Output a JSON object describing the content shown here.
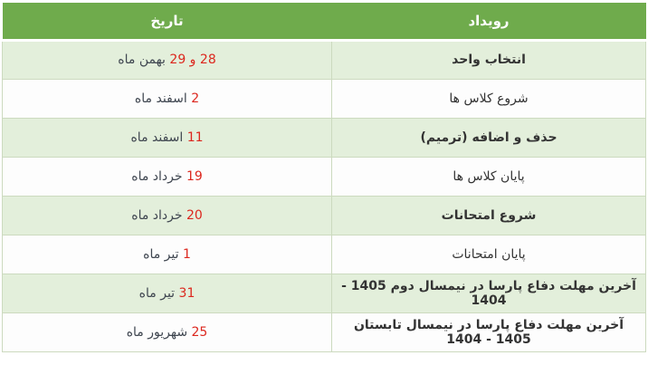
{
  "table": {
    "header": {
      "event": "رویداد",
      "date": "تاریخ"
    },
    "rows": [
      {
        "event": "انتخاب واحد",
        "date_num": "28 و 29",
        "date_month": "بهمن ماه"
      },
      {
        "event": "شروع کلاس ها",
        "date_num": "2",
        "date_month": "اسفند ماه"
      },
      {
        "event": "حذف و اضافه (ترمیم)",
        "date_num": "11",
        "date_month": "اسفند ماه"
      },
      {
        "event": "پایان کلاس ها",
        "date_num": "19",
        "date_month": "خرداد ماه"
      },
      {
        "event": "شروع امتحانات",
        "date_num": "20",
        "date_month": "خرداد ماه"
      },
      {
        "event": "پایان امتحانات",
        "date_num": "1",
        "date_month": "تیر ماه"
      },
      {
        "event": "آخرین مهلت دفاع پارسا در نیمسال دوم 1405 - 1404",
        "date_num": "31",
        "date_month": "تیر ماه"
      },
      {
        "event": "آخرین مهلت دفاع پارسا در نیمسال تابستان 1405 - 1404",
        "date_num": "25",
        "date_month": "شهریور ماه"
      }
    ]
  },
  "colors": {
    "header_bg": "#6fab4c",
    "header_text": "#ffffff",
    "row_green": "#e3efdb",
    "row_white": "#fdfdfd",
    "red": "#dc271e",
    "border": "#ccdabf",
    "event_text": "#333333",
    "date_text": "#3f4650"
  }
}
